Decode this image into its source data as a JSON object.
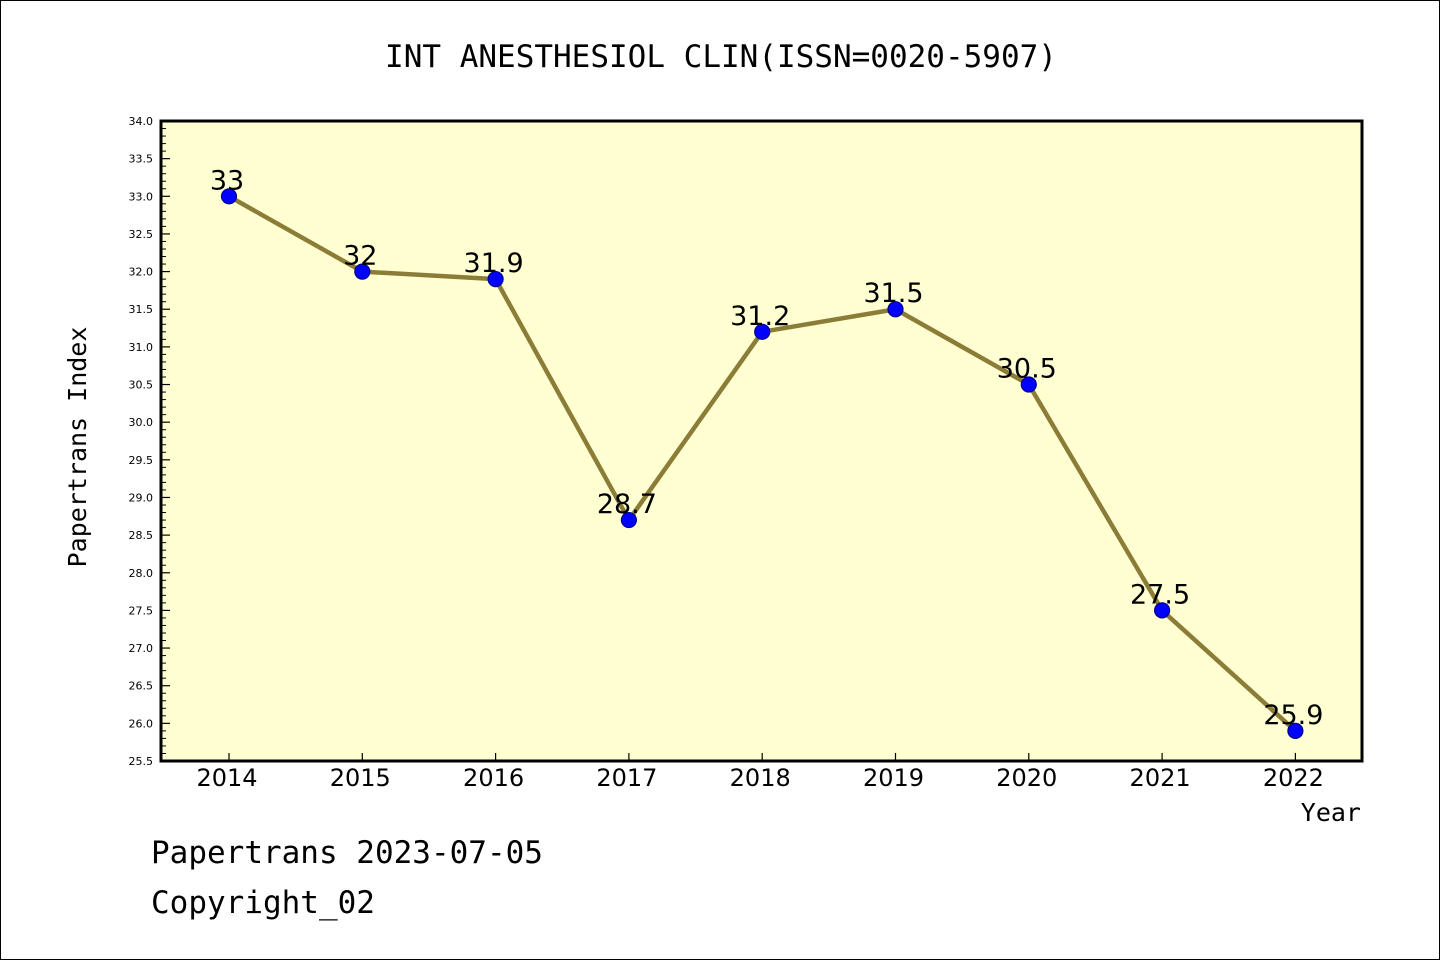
{
  "chart_data": {
    "type": "line",
    "title": "INT ANESTHESIOL CLIN(ISSN=0020-5907)",
    "xlabel": "Year",
    "ylabel": "Papertrans Index",
    "categories": [
      "2014",
      "2015",
      "2016",
      "2017",
      "2018",
      "2019",
      "2020",
      "2021",
      "2022"
    ],
    "values": [
      33,
      32,
      31.9,
      28.7,
      31.2,
      31.5,
      30.5,
      27.5,
      25.9
    ],
    "data_labels": [
      "33",
      "32",
      "31.9",
      "28.7",
      "31.2",
      "31.5",
      "30.5",
      "27.5",
      "25.9"
    ],
    "ylim": [
      25.5,
      34.0
    ],
    "ytick_step": 0.5,
    "ytick_labels": [
      "25.5",
      "26.0",
      "26.5",
      "27.0",
      "27.5",
      "28.0",
      "28.5",
      "29.0",
      "29.5",
      "30.0",
      "30.5",
      "31.0",
      "31.5",
      "32.0",
      "32.5",
      "33.0",
      "33.5",
      "34.0"
    ],
    "grid": false,
    "colors": {
      "plot_background": "#ffffd2",
      "line": "#8b7d37",
      "marker": "#0000ff",
      "marker_edge": "#00008b",
      "axes": "#000000"
    }
  },
  "footer": {
    "date_line": "Papertrans 2023-07-05",
    "copyright_line": "Copyright_02"
  }
}
